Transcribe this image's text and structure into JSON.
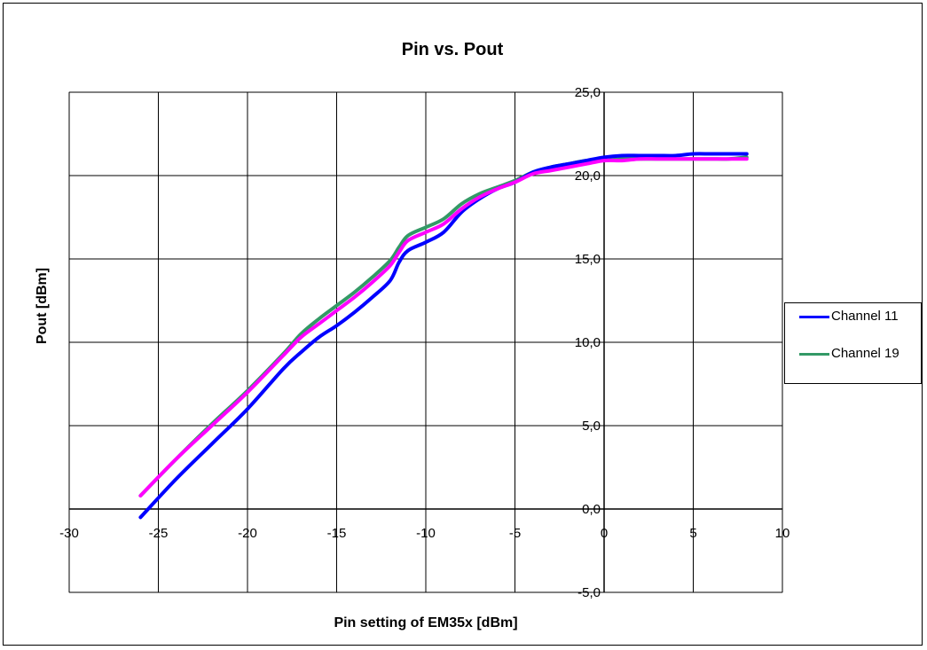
{
  "chart_data": {
    "type": "line",
    "title": "Pin vs. Pout",
    "xlabel": "Pin setting of EM35x [dBm]",
    "ylabel": "Pout [dBm]",
    "xlim": [
      -30,
      10
    ],
    "ylim": [
      -5,
      25
    ],
    "x_ticks": [
      "-30",
      "-25",
      "-20",
      "-15",
      "-10",
      "-5",
      "0",
      "5",
      "10"
    ],
    "y_ticks": [
      "25,0",
      "20,0",
      "15,0",
      "10,0",
      "5,0",
      "0,0",
      "-5,0"
    ],
    "grid": true,
    "legend_position": "right",
    "series": [
      {
        "name": "Channel 11",
        "color": "#0000ff",
        "points": [
          [
            -26,
            -0.5
          ],
          [
            -24,
            1.8
          ],
          [
            -22,
            3.9
          ],
          [
            -20,
            6.0
          ],
          [
            -18,
            8.4
          ],
          [
            -17,
            9.4
          ],
          [
            -16,
            10.3
          ],
          [
            -15,
            11.0
          ],
          [
            -14,
            11.8
          ],
          [
            -13,
            12.7
          ],
          [
            -12,
            13.7
          ],
          [
            -11.5,
            14.8
          ],
          [
            -11,
            15.5
          ],
          [
            -10,
            16.0
          ],
          [
            -9,
            16.6
          ],
          [
            -8,
            17.8
          ],
          [
            -7,
            18.6
          ],
          [
            -6,
            19.2
          ],
          [
            -5,
            19.6
          ],
          [
            -4,
            20.2
          ],
          [
            -3,
            20.5
          ],
          [
            -2,
            20.7
          ],
          [
            -1,
            20.9
          ],
          [
            0,
            21.1
          ],
          [
            1,
            21.2
          ],
          [
            2,
            21.2
          ],
          [
            3,
            21.2
          ],
          [
            4,
            21.2
          ],
          [
            5,
            21.3
          ],
          [
            6,
            21.3
          ],
          [
            7,
            21.3
          ],
          [
            8,
            21.3
          ]
        ]
      },
      {
        "name": "Channel 19",
        "color": "#339966",
        "points": [
          [
            -26,
            0.8
          ],
          [
            -24,
            3.0
          ],
          [
            -22,
            5.1
          ],
          [
            -20,
            7.1
          ],
          [
            -18,
            9.3
          ],
          [
            -17,
            10.5
          ],
          [
            -16,
            11.4
          ],
          [
            -15,
            12.2
          ],
          [
            -14,
            13.0
          ],
          [
            -13,
            13.9
          ],
          [
            -12,
            14.9
          ],
          [
            -11.5,
            15.7
          ],
          [
            -11,
            16.4
          ],
          [
            -10,
            16.9
          ],
          [
            -9,
            17.4
          ],
          [
            -8,
            18.3
          ],
          [
            -7,
            18.9
          ],
          [
            -6,
            19.3
          ],
          [
            -5,
            19.7
          ],
          [
            -4,
            20.2
          ],
          [
            -3,
            20.5
          ],
          [
            -2,
            20.7
          ],
          [
            -1,
            20.9
          ],
          [
            0,
            20.9
          ],
          [
            1,
            21.0
          ],
          [
            2,
            21.0
          ],
          [
            3,
            21.0
          ],
          [
            4,
            21.0
          ],
          [
            5,
            21.0
          ],
          [
            6,
            21.0
          ],
          [
            7,
            21.0
          ],
          [
            8,
            21.1
          ]
        ]
      },
      {
        "name": "",
        "color": "#ff00ff",
        "points": [
          [
            -26,
            0.8
          ],
          [
            -24,
            3.0
          ],
          [
            -22,
            5.0
          ],
          [
            -20,
            7.0
          ],
          [
            -18,
            9.2
          ],
          [
            -17,
            10.3
          ],
          [
            -16,
            11.1
          ],
          [
            -15,
            11.9
          ],
          [
            -14,
            12.7
          ],
          [
            -13,
            13.6
          ],
          [
            -12,
            14.6
          ],
          [
            -11.5,
            15.4
          ],
          [
            -11,
            16.1
          ],
          [
            -10,
            16.6
          ],
          [
            -9,
            17.1
          ],
          [
            -8,
            18.0
          ],
          [
            -7,
            18.7
          ],
          [
            -6,
            19.2
          ],
          [
            -5,
            19.6
          ],
          [
            -4,
            20.1
          ],
          [
            -3,
            20.3
          ],
          [
            -2,
            20.5
          ],
          [
            -1,
            20.7
          ],
          [
            0,
            20.9
          ],
          [
            1,
            20.9
          ],
          [
            2,
            21.0
          ],
          [
            3,
            21.0
          ],
          [
            4,
            21.0
          ],
          [
            5,
            21.0
          ],
          [
            6,
            21.0
          ],
          [
            7,
            21.0
          ],
          [
            8,
            21.0
          ]
        ]
      }
    ]
  }
}
